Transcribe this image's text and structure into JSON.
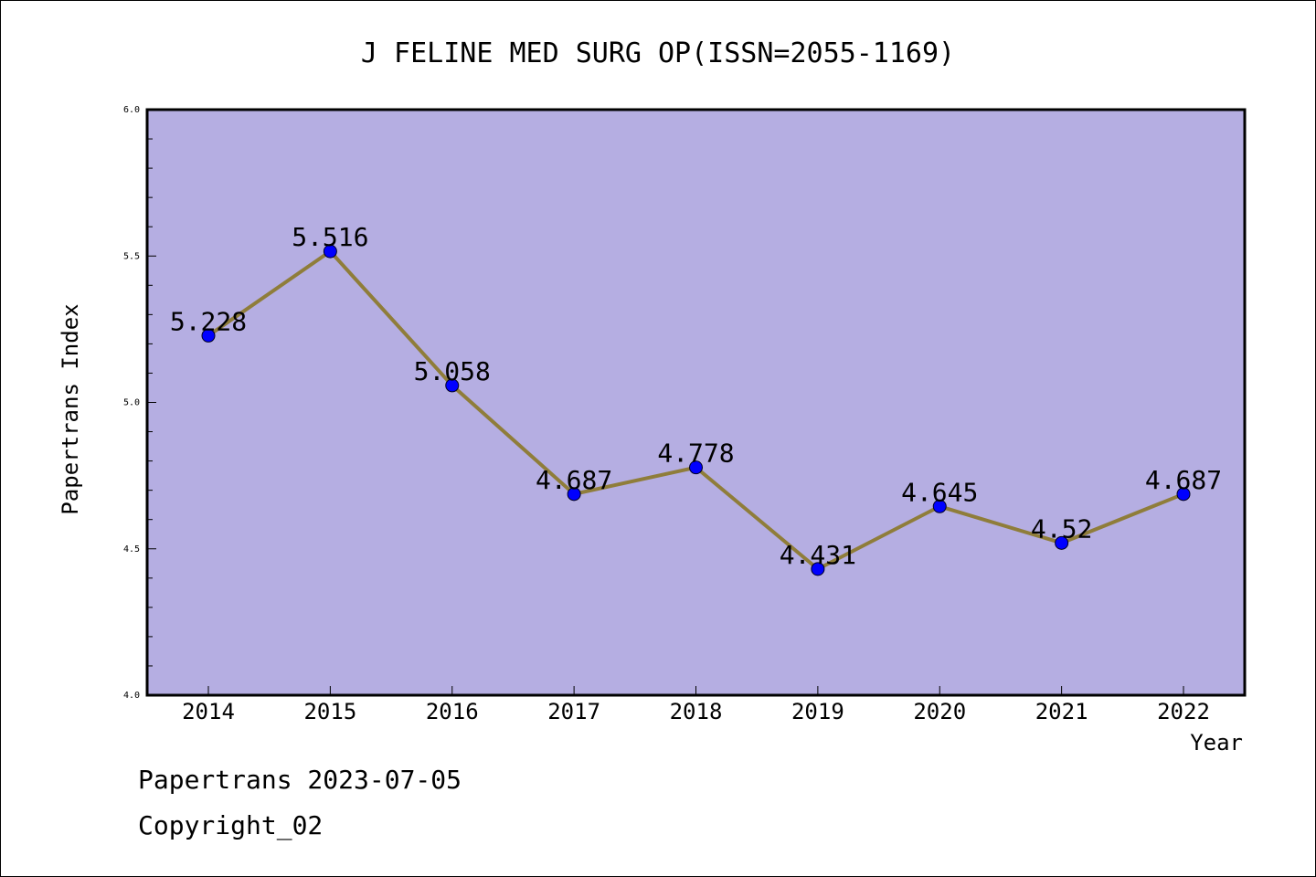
{
  "chart_data": {
    "type": "line",
    "title": "J FELINE MED SURG OP(ISSN=2055-1169)",
    "xlabel": "Year",
    "ylabel": "Papertrans Index",
    "categories": [
      "2014",
      "2015",
      "2016",
      "2017",
      "2018",
      "2019",
      "2020",
      "2021",
      "2022"
    ],
    "values": [
      5.228,
      5.516,
      5.058,
      4.687,
      4.778,
      4.431,
      4.645,
      4.52,
      4.687
    ],
    "data_labels": [
      "5.228",
      "5.516",
      "5.058",
      "4.687",
      "4.778",
      "4.431",
      "4.645",
      "4.52",
      "4.687"
    ],
    "ylim": [
      4.0,
      6.0
    ],
    "y_ticks": [
      "4.0",
      "4.5",
      "5.0",
      "5.5",
      "6.0"
    ],
    "grid": false,
    "colors": {
      "plot_background": "#b5aee2",
      "line": "#8f7d3a",
      "marker": "#0000ff"
    }
  },
  "footer": {
    "line1": "Papertrans 2023-07-05",
    "line2": "Copyright_02"
  }
}
